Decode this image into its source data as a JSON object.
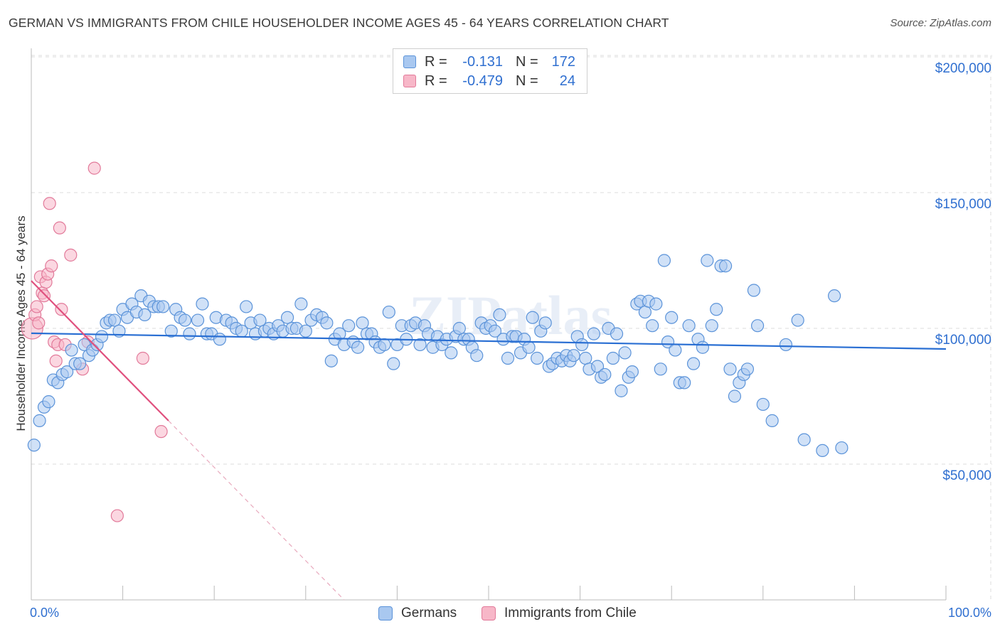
{
  "title": "GERMAN VS IMMIGRANTS FROM CHILE HOUSEHOLDER INCOME AGES 45 - 64 YEARS CORRELATION CHART",
  "source": "Source: ZipAtlas.com",
  "watermark": "ZIPatlas",
  "legend": {
    "rows": [
      {
        "r_label": "R =",
        "r_value": "-0.131",
        "n_label": "N =",
        "n_value": "172",
        "color": "#a9c8f0",
        "border": "#5b93d9"
      },
      {
        "r_label": "R =",
        "r_value": "-0.479",
        "n_label": "N =",
        "n_value": "24",
        "color": "#f7b7c8",
        "border": "#e27a9a"
      }
    ]
  },
  "bottom_legend": {
    "series1": "Germans",
    "series2": "Immigrants from Chile"
  },
  "colors": {
    "blue_fill": "#a9c8f0",
    "blue_stroke": "#5b93d9",
    "blue_line": "#2a6fd3",
    "pink_fill": "#f7b7c8",
    "pink_stroke": "#e27a9a",
    "pink_line": "#e0507e",
    "axis_text": "#2f6fd0",
    "grid": "#dddddd"
  },
  "chart_data": {
    "type": "scatter",
    "title": "GERMAN VS IMMIGRANTS FROM CHILE HOUSEHOLDER INCOME AGES 45 - 64 YEARS CORRELATION CHART",
    "xlabel": "",
    "ylabel": "Householder Income Ages 45 - 64 years",
    "xlim": [
      0,
      100
    ],
    "ylim": [
      0,
      210000
    ],
    "x_tick_labels": [
      "0.0%",
      "100.0%"
    ],
    "y_ticks": [
      50000,
      100000,
      150000,
      200000
    ],
    "y_tick_labels": [
      "$50,000",
      "$100,000",
      "$150,000",
      "$200,000"
    ],
    "series": [
      {
        "name": "Germans",
        "trend": {
          "x": [
            0,
            100
          ],
          "y": [
            98200,
            92400
          ]
        },
        "points": [
          [
            0.3,
            57000
          ],
          [
            0.9,
            66000
          ],
          [
            1.4,
            71000
          ],
          [
            1.9,
            73000
          ],
          [
            2.4,
            81000
          ],
          [
            2.9,
            80000
          ],
          [
            3.4,
            83000
          ],
          [
            3.9,
            84000
          ],
          [
            4.4,
            92000
          ],
          [
            4.8,
            87000
          ],
          [
            5.3,
            87000
          ],
          [
            5.8,
            94000
          ],
          [
            6.3,
            90000
          ],
          [
            6.7,
            92000
          ],
          [
            7.2,
            94000
          ],
          [
            7.7,
            97000
          ],
          [
            8.2,
            102000
          ],
          [
            8.6,
            103000
          ],
          [
            9.1,
            103000
          ],
          [
            9.6,
            99000
          ],
          [
            10.0,
            107000
          ],
          [
            10.5,
            104000
          ],
          [
            11.0,
            109000
          ],
          [
            11.5,
            106000
          ],
          [
            12.0,
            112000
          ],
          [
            12.4,
            105000
          ],
          [
            12.9,
            110000
          ],
          [
            13.4,
            108000
          ],
          [
            13.9,
            108000
          ],
          [
            14.4,
            108000
          ],
          [
            15.3,
            99000
          ],
          [
            15.8,
            107000
          ],
          [
            16.3,
            104000
          ],
          [
            16.8,
            103000
          ],
          [
            17.3,
            98000
          ],
          [
            18.2,
            103000
          ],
          [
            18.7,
            109000
          ],
          [
            19.2,
            98000
          ],
          [
            19.7,
            98000
          ],
          [
            20.2,
            104000
          ],
          [
            20.6,
            96000
          ],
          [
            21.3,
            103000
          ],
          [
            21.9,
            102000
          ],
          [
            22.4,
            100000
          ],
          [
            23.0,
            99000
          ],
          [
            23.5,
            108000
          ],
          [
            24.0,
            102000
          ],
          [
            24.5,
            98000
          ],
          [
            25.0,
            103000
          ],
          [
            25.5,
            99000
          ],
          [
            26.0,
            100000
          ],
          [
            26.5,
            98000
          ],
          [
            27.0,
            101000
          ],
          [
            27.5,
            99000
          ],
          [
            28.0,
            104000
          ],
          [
            28.5,
            100000
          ],
          [
            29.0,
            100000
          ],
          [
            29.5,
            109000
          ],
          [
            30.0,
            99000
          ],
          [
            30.6,
            103000
          ],
          [
            31.2,
            105000
          ],
          [
            31.8,
            104000
          ],
          [
            32.3,
            102000
          ],
          [
            32.8,
            88000
          ],
          [
            33.2,
            96000
          ],
          [
            33.7,
            98000
          ],
          [
            34.2,
            94000
          ],
          [
            34.7,
            101000
          ],
          [
            35.2,
            95000
          ],
          [
            35.7,
            93000
          ],
          [
            36.2,
            102000
          ],
          [
            36.7,
            98000
          ],
          [
            37.2,
            98000
          ],
          [
            37.6,
            95000
          ],
          [
            38.1,
            93000
          ],
          [
            38.6,
            94000
          ],
          [
            39.1,
            106000
          ],
          [
            39.6,
            87000
          ],
          [
            40.0,
            94000
          ],
          [
            40.5,
            101000
          ],
          [
            41.0,
            96000
          ],
          [
            41.5,
            101000
          ],
          [
            42.0,
            102000
          ],
          [
            42.5,
            94000
          ],
          [
            43.0,
            101000
          ],
          [
            43.4,
            98000
          ],
          [
            43.9,
            93000
          ],
          [
            44.4,
            97000
          ],
          [
            44.9,
            94000
          ],
          [
            45.4,
            96000
          ],
          [
            45.9,
            91000
          ],
          [
            46.4,
            97000
          ],
          [
            46.8,
            100000
          ],
          [
            47.3,
            96000
          ],
          [
            47.8,
            96000
          ],
          [
            48.2,
            93000
          ],
          [
            48.7,
            90000
          ],
          [
            49.2,
            102000
          ],
          [
            49.7,
            100000
          ],
          [
            50.2,
            101000
          ],
          [
            50.7,
            99000
          ],
          [
            51.2,
            105000
          ],
          [
            51.6,
            96000
          ],
          [
            52.1,
            89000
          ],
          [
            52.6,
            97000
          ],
          [
            53.0,
            97000
          ],
          [
            53.5,
            91000
          ],
          [
            53.9,
            96000
          ],
          [
            54.4,
            93000
          ],
          [
            54.8,
            104000
          ],
          [
            55.3,
            89000
          ],
          [
            55.7,
            99000
          ],
          [
            56.2,
            102000
          ],
          [
            56.6,
            86000
          ],
          [
            57.0,
            87000
          ],
          [
            57.5,
            89000
          ],
          [
            58.0,
            88000
          ],
          [
            58.5,
            90000
          ],
          [
            58.9,
            88000
          ],
          [
            59.3,
            90000
          ],
          [
            59.7,
            97000
          ],
          [
            60.2,
            94000
          ],
          [
            60.6,
            89000
          ],
          [
            61.0,
            85000
          ],
          [
            61.5,
            98000
          ],
          [
            61.9,
            86000
          ],
          [
            62.3,
            82000
          ],
          [
            62.7,
            83000
          ],
          [
            63.1,
            100000
          ],
          [
            63.6,
            89000
          ],
          [
            64.0,
            98000
          ],
          [
            64.5,
            77000
          ],
          [
            64.9,
            91000
          ],
          [
            65.3,
            82000
          ],
          [
            65.7,
            84000
          ],
          [
            66.2,
            109000
          ],
          [
            66.6,
            110000
          ],
          [
            67.1,
            106000
          ],
          [
            67.5,
            110000
          ],
          [
            67.9,
            101000
          ],
          [
            68.3,
            109000
          ],
          [
            68.8,
            85000
          ],
          [
            69.2,
            125000
          ],
          [
            69.6,
            95000
          ],
          [
            70.0,
            104000
          ],
          [
            70.4,
            92000
          ],
          [
            70.9,
            80000
          ],
          [
            71.4,
            80000
          ],
          [
            71.9,
            101000
          ],
          [
            72.4,
            87000
          ],
          [
            72.9,
            96000
          ],
          [
            73.4,
            93000
          ],
          [
            73.9,
            125000
          ],
          [
            74.4,
            101000
          ],
          [
            74.9,
            107000
          ],
          [
            75.4,
            123000
          ],
          [
            75.9,
            123000
          ],
          [
            76.4,
            85000
          ],
          [
            76.9,
            75000
          ],
          [
            77.4,
            80000
          ],
          [
            77.9,
            83000
          ],
          [
            78.3,
            85000
          ],
          [
            79.0,
            114000
          ],
          [
            79.4,
            101000
          ],
          [
            80.0,
            72000
          ],
          [
            81.0,
            66000
          ],
          [
            82.5,
            94000
          ],
          [
            83.8,
            103000
          ],
          [
            84.5,
            59000
          ],
          [
            86.5,
            55000
          ],
          [
            87.8,
            112000
          ],
          [
            88.6,
            56000
          ]
        ]
      },
      {
        "name": "Immigrants from Chile",
        "trend": {
          "x": [
            0,
            15
          ],
          "y": [
            117500,
            66000
          ]
        },
        "trend_dashed": {
          "x": [
            15,
            34.2
          ],
          "y": [
            66000,
            0
          ]
        },
        "points": [
          [
            0.1,
            100000
          ],
          [
            0.4,
            105000
          ],
          [
            0.6,
            108000
          ],
          [
            0.8,
            102000
          ],
          [
            1.0,
            119000
          ],
          [
            1.2,
            113000
          ],
          [
            1.4,
            112000
          ],
          [
            1.6,
            117000
          ],
          [
            1.8,
            120000
          ],
          [
            2.0,
            146000
          ],
          [
            2.2,
            123000
          ],
          [
            2.5,
            95000
          ],
          [
            2.7,
            88000
          ],
          [
            2.9,
            94000
          ],
          [
            3.1,
            137000
          ],
          [
            3.3,
            107000
          ],
          [
            3.7,
            94000
          ],
          [
            4.3,
            127000
          ],
          [
            5.6,
            85000
          ],
          [
            6.2,
            95000
          ],
          [
            6.9,
            159000
          ],
          [
            9.4,
            31000
          ],
          [
            12.2,
            89000
          ],
          [
            14.2,
            62000
          ]
        ]
      }
    ]
  }
}
